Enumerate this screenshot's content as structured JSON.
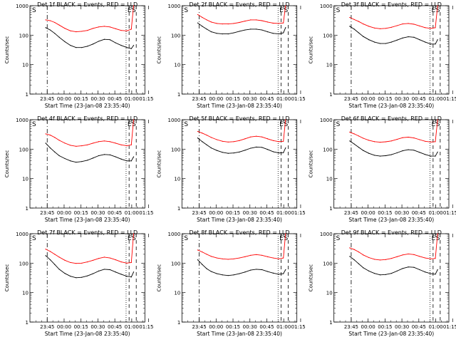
{
  "chart_data": [
    {
      "type": "line",
      "title": "Det 1f BLACK = Events, RED = LLD",
      "xlabel": "Start Time (23-Jan-08 23:35:40)",
      "ylabel": "Counts/sec",
      "yscale": "log",
      "ylim": [
        1,
        1000
      ],
      "x_ticks": [
        "23:45",
        "00:00",
        "00:15",
        "00:30",
        "00:45",
        "01:00",
        "01:15"
      ],
      "y_ticks": [
        "1",
        "10",
        "100",
        "1000"
      ],
      "markers": [
        "S",
        "E",
        "S"
      ],
      "series": [
        {
          "name": "BLACK",
          "color": "#000000",
          "x": [
            8,
            12,
            16,
            20,
            25,
            30,
            35,
            40,
            45,
            50,
            55,
            60,
            65,
            70,
            75,
            80,
            84,
            86
          ],
          "y": [
            180,
            150,
            115,
            85,
            60,
            45,
            38,
            38,
            42,
            50,
            62,
            72,
            70,
            55,
            45,
            38,
            35,
            45
          ]
        },
        {
          "name": "RED",
          "color": "#ff0000",
          "x": [
            8,
            12,
            16,
            20,
            25,
            30,
            35,
            40,
            45,
            50,
            55,
            60,
            65,
            70,
            75,
            80,
            84,
            86
          ],
          "y": [
            330,
            310,
            270,
            220,
            170,
            140,
            130,
            135,
            145,
            170,
            190,
            200,
            190,
            165,
            145,
            140,
            160,
            1000
          ]
        }
      ]
    },
    {
      "type": "line",
      "title": "Det 2f BLACK = Events, RED = LLD",
      "xlabel": "Start Time (23-Jan-08 23:35:40)",
      "ylabel": "Counts/sec",
      "yscale": "log",
      "ylim": [
        1,
        1000
      ],
      "x_ticks": [
        "23:45",
        "00:00",
        "00:15",
        "00:30",
        "00:45",
        "01:00",
        "01:15"
      ],
      "y_ticks": [
        "1",
        "10",
        "100",
        "1000"
      ],
      "markers": [
        "S",
        "E",
        "S"
      ],
      "series": [
        {
          "name": "BLACK",
          "color": "#000000",
          "x": [
            8,
            12,
            16,
            20,
            25,
            30,
            35,
            40,
            45,
            50,
            55,
            60,
            65,
            70,
            75,
            80,
            84,
            86
          ],
          "y": [
            260,
            200,
            160,
            130,
            115,
            110,
            110,
            120,
            135,
            150,
            160,
            160,
            150,
            130,
            115,
            110,
            120,
            180
          ]
        },
        {
          "name": "RED",
          "color": "#ff0000",
          "x": [
            8,
            12,
            16,
            20,
            25,
            30,
            35,
            40,
            45,
            50,
            55,
            60,
            65,
            70,
            75,
            80,
            84,
            86
          ],
          "y": [
            500,
            400,
            330,
            280,
            250,
            240,
            240,
            250,
            270,
            300,
            330,
            330,
            310,
            280,
            255,
            250,
            260,
            1000
          ]
        }
      ]
    },
    {
      "type": "line",
      "title": "Det 3f BLACK = Events, RED = LLD",
      "xlabel": "Start Time (23-Jan-08 23:35:40)",
      "ylabel": "Counts/sec",
      "yscale": "log",
      "ylim": [
        1,
        1000
      ],
      "x_ticks": [
        "23:45",
        "00:00",
        "00:15",
        "00:30",
        "00:45",
        "01:00",
        "01:15"
      ],
      "y_ticks": [
        "1",
        "10",
        "100",
        "1000"
      ],
      "markers": [
        "S",
        "E",
        "S"
      ],
      "series": [
        {
          "name": "BLACK",
          "color": "#000000",
          "x": [
            8,
            12,
            16,
            20,
            25,
            30,
            35,
            40,
            45,
            50,
            55,
            60,
            65,
            70,
            75,
            80,
            84,
            86
          ],
          "y": [
            200,
            160,
            120,
            90,
            70,
            58,
            52,
            52,
            58,
            68,
            80,
            88,
            85,
            70,
            58,
            50,
            50,
            70
          ]
        },
        {
          "name": "RED",
          "color": "#ff0000",
          "x": [
            8,
            12,
            16,
            20,
            25,
            30,
            35,
            40,
            45,
            50,
            55,
            60,
            65,
            70,
            75,
            80,
            84,
            86
          ],
          "y": [
            400,
            340,
            290,
            240,
            200,
            175,
            165,
            170,
            185,
            210,
            240,
            250,
            235,
            205,
            180,
            170,
            180,
            1000
          ]
        }
      ]
    },
    {
      "type": "line",
      "title": "Det 4f BLACK = Events, RED = LLD",
      "xlabel": "Start Time (23-Jan-08 23:35:40)",
      "ylabel": "Counts/sec",
      "yscale": "log",
      "ylim": [
        1,
        1000
      ],
      "x_ticks": [
        "23:45",
        "00:00",
        "00:15",
        "00:30",
        "00:45",
        "01:00",
        "01:15"
      ],
      "y_ticks": [
        "1",
        "10",
        "100",
        "1000"
      ],
      "markers": [
        "S",
        "E",
        "S"
      ],
      "series": [
        {
          "name": "BLACK",
          "color": "#000000",
          "x": [
            8,
            12,
            16,
            20,
            25,
            30,
            35,
            40,
            45,
            50,
            55,
            60,
            65,
            70,
            75,
            80,
            84,
            86
          ],
          "y": [
            160,
            110,
            80,
            60,
            48,
            40,
            36,
            38,
            42,
            50,
            60,
            66,
            64,
            55,
            46,
            40,
            40,
            55
          ]
        },
        {
          "name": "RED",
          "color": "#ff0000",
          "x": [
            8,
            12,
            16,
            20,
            25,
            30,
            35,
            40,
            45,
            50,
            55,
            60,
            65,
            70,
            75,
            80,
            84,
            86
          ],
          "y": [
            330,
            300,
            250,
            200,
            160,
            135,
            125,
            130,
            140,
            160,
            180,
            190,
            180,
            160,
            140,
            130,
            140,
            1000
          ]
        }
      ]
    },
    {
      "type": "line",
      "title": "Det 5f BLACK = Events, RED = LLD",
      "xlabel": "Start Time (23-Jan-08 23:35:40)",
      "ylabel": "Counts/sec",
      "yscale": "log",
      "ylim": [
        1,
        1000
      ],
      "x_ticks": [
        "23:45",
        "00:00",
        "00:15",
        "00:30",
        "00:45",
        "01:00",
        "01:15"
      ],
      "y_ticks": [
        "1",
        "10",
        "100",
        "1000"
      ],
      "markers": [
        "S",
        "E",
        "S"
      ],
      "series": [
        {
          "name": "BLACK",
          "color": "#000000",
          "x": [
            8,
            12,
            16,
            20,
            25,
            30,
            35,
            40,
            45,
            50,
            55,
            60,
            65,
            70,
            75,
            80,
            84,
            86
          ],
          "y": [
            240,
            180,
            140,
            110,
            90,
            78,
            72,
            74,
            80,
            92,
            108,
            118,
            115,
            98,
            82,
            74,
            76,
            110
          ]
        },
        {
          "name": "RED",
          "color": "#ff0000",
          "x": [
            8,
            12,
            16,
            20,
            25,
            30,
            35,
            40,
            45,
            50,
            55,
            60,
            65,
            70,
            75,
            80,
            84,
            86
          ],
          "y": [
            400,
            350,
            300,
            250,
            210,
            185,
            175,
            180,
            195,
            225,
            260,
            275,
            260,
            225,
            195,
            180,
            185,
            1000
          ]
        }
      ]
    },
    {
      "type": "line",
      "title": "Det 6f BLACK = Events, RED = LLD",
      "xlabel": "Start Time (23-Jan-08 23:35:40)",
      "ylabel": "Counts/sec",
      "yscale": "log",
      "ylim": [
        1,
        1000
      ],
      "x_ticks": [
        "23:45",
        "00:00",
        "00:15",
        "00:30",
        "00:45",
        "01:00",
        "01:15"
      ],
      "y_ticks": [
        "1",
        "10",
        "100",
        "1000"
      ],
      "markers": [
        "S",
        "E",
        "S"
      ],
      "series": [
        {
          "name": "BLACK",
          "color": "#000000",
          "x": [
            8,
            12,
            16,
            20,
            25,
            30,
            35,
            40,
            45,
            50,
            55,
            60,
            65,
            70,
            75,
            80,
            84,
            86
          ],
          "y": [
            190,
            150,
            115,
            90,
            72,
            62,
            58,
            60,
            65,
            75,
            88,
            96,
            92,
            78,
            66,
            58,
            58,
            80
          ]
        },
        {
          "name": "RED",
          "color": "#ff0000",
          "x": [
            8,
            12,
            16,
            20,
            25,
            30,
            35,
            40,
            45,
            50,
            55,
            60,
            65,
            70,
            75,
            80,
            84,
            86
          ],
          "y": [
            380,
            330,
            280,
            235,
            200,
            180,
            172,
            178,
            190,
            215,
            245,
            255,
            240,
            210,
            185,
            175,
            180,
            1000
          ]
        }
      ]
    },
    {
      "type": "line",
      "title": "Det 7f BLACK = Events, RED = LLD",
      "xlabel": "Start Time (23-Jan-08 23:35:40)",
      "ylabel": "Counts/sec",
      "yscale": "log",
      "ylim": [
        1,
        1000
      ],
      "x_ticks": [
        "23:45",
        "00:00",
        "00:15",
        "00:30",
        "00:45",
        "01:00",
        "01:15"
      ],
      "y_ticks": [
        "1",
        "10",
        "100",
        "1000"
      ],
      "markers": [
        "S",
        "E",
        "S"
      ],
      "series": [
        {
          "name": "BLACK",
          "color": "#000000",
          "x": [
            8,
            12,
            16,
            20,
            25,
            30,
            35,
            40,
            45,
            50,
            55,
            60,
            65,
            70,
            75,
            80,
            84,
            86
          ],
          "y": [
            180,
            130,
            90,
            62,
            45,
            36,
            32,
            33,
            37,
            44,
            54,
            62,
            60,
            50,
            42,
            36,
            34,
            50
          ]
        },
        {
          "name": "RED",
          "color": "#ff0000",
          "x": [
            8,
            12,
            16,
            20,
            25,
            30,
            35,
            40,
            45,
            50,
            55,
            60,
            65,
            70,
            75,
            80,
            84,
            86
          ],
          "y": [
            300,
            250,
            200,
            160,
            125,
            105,
            98,
            100,
            110,
            125,
            145,
            160,
            150,
            130,
            110,
            100,
            105,
            1000
          ]
        }
      ]
    },
    {
      "type": "line",
      "title": "Det 8f BLACK = Events, RED = LLD",
      "xlabel": "Start Time (23-Jan-08 23:35:40)",
      "ylabel": "Counts/sec",
      "yscale": "log",
      "ylim": [
        1,
        1000
      ],
      "x_ticks": [
        "23:45",
        "00:00",
        "00:15",
        "00:30",
        "00:45",
        "01:00",
        "01:15"
      ],
      "y_ticks": [
        "1",
        "10",
        "100",
        "1000"
      ],
      "markers": [
        "S",
        "E",
        "S"
      ],
      "series": [
        {
          "name": "BLACK",
          "color": "#000000",
          "x": [
            8,
            12,
            16,
            20,
            25,
            30,
            35,
            40,
            45,
            50,
            55,
            60,
            65,
            70,
            75,
            80,
            84,
            86
          ],
          "y": [
            130,
            90,
            65,
            52,
            44,
            40,
            38,
            40,
            44,
            50,
            58,
            62,
            60,
            52,
            46,
            42,
            44,
            60
          ]
        },
        {
          "name": "RED",
          "color": "#ff0000",
          "x": [
            8,
            12,
            16,
            20,
            25,
            30,
            35,
            40,
            45,
            50,
            55,
            60,
            65,
            70,
            75,
            80,
            84,
            86
          ],
          "y": [
            280,
            240,
            200,
            170,
            150,
            140,
            135,
            140,
            150,
            165,
            185,
            195,
            185,
            165,
            150,
            140,
            150,
            1000
          ]
        }
      ]
    },
    {
      "type": "line",
      "title": "Det 9f BLACK = Events, RED = LLD",
      "xlabel": "Start Time (23-Jan-08 23:35:40)",
      "ylabel": "Counts/sec",
      "yscale": "log",
      "ylim": [
        1,
        1000
      ],
      "x_ticks": [
        "23:45",
        "00:00",
        "00:15",
        "00:30",
        "00:45",
        "01:00",
        "01:15"
      ],
      "y_ticks": [
        "1",
        "10",
        "100",
        "1000"
      ],
      "markers": [
        "S",
        "E",
        "S"
      ],
      "series": [
        {
          "name": "BLACK",
          "color": "#000000",
          "x": [
            8,
            12,
            16,
            20,
            25,
            30,
            35,
            40,
            45,
            50,
            55,
            60,
            65,
            70,
            75,
            80,
            84,
            86
          ],
          "y": [
            170,
            130,
            95,
            70,
            54,
            45,
            40,
            41,
            45,
            54,
            66,
            74,
            72,
            60,
            50,
            44,
            42,
            60
          ]
        },
        {
          "name": "RED",
          "color": "#ff0000",
          "x": [
            8,
            12,
            16,
            20,
            25,
            30,
            35,
            40,
            45,
            50,
            55,
            60,
            65,
            70,
            75,
            80,
            84,
            86
          ],
          "y": [
            330,
            290,
            240,
            190,
            155,
            135,
            128,
            132,
            145,
            165,
            190,
            205,
            195,
            170,
            150,
            140,
            145,
            1000
          ]
        }
      ]
    }
  ]
}
